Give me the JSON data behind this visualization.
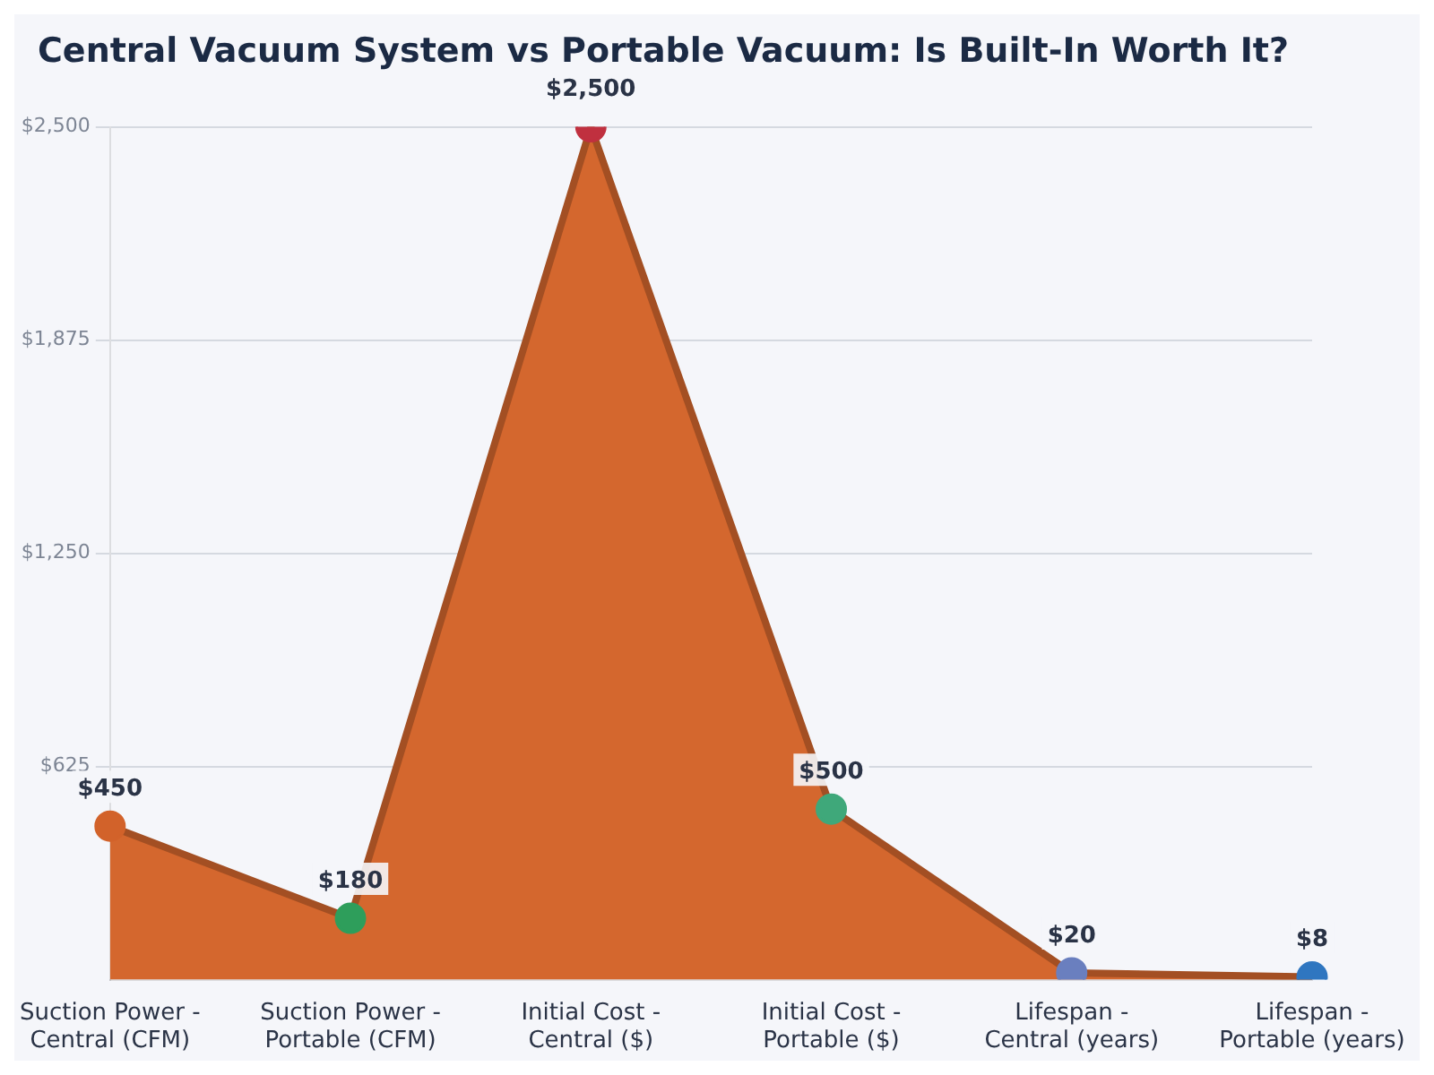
{
  "chart_data": {
    "type": "area",
    "title": "Central Vacuum System vs Portable Vacuum: Is Built-In Worth It?",
    "categories": [
      "Suction Power - Central (CFM)",
      "Suction Power - Portable (CFM)",
      "Initial Cost - Central ($)",
      "Initial Cost - Portable ($)",
      "Lifespan - Central (years)",
      "Lifespan - Portable (years)"
    ],
    "values": [
      450,
      180,
      2500,
      500,
      20,
      8
    ],
    "value_labels": [
      "$450",
      "$180",
      "$2,500",
      "$500",
      "$20",
      "$8"
    ],
    "color": "#d4672e",
    "colors": [
      "#d2622a",
      "#2e9e5b",
      "#c0303f",
      "#3fa87a",
      "#6a7fbf",
      "#2f76c0"
    ],
    "ylim": [
      0,
      2500
    ],
    "yticks": [
      {
        "value": 625,
        "label": "$625"
      },
      {
        "value": 1250,
        "label": "$1,250"
      },
      {
        "value": 1875,
        "label": "$1,875"
      },
      {
        "value": 2500,
        "label": "$2,500"
      }
    ],
    "grid": "y",
    "legend": false,
    "marker": "circle",
    "line_style": "solid"
  }
}
